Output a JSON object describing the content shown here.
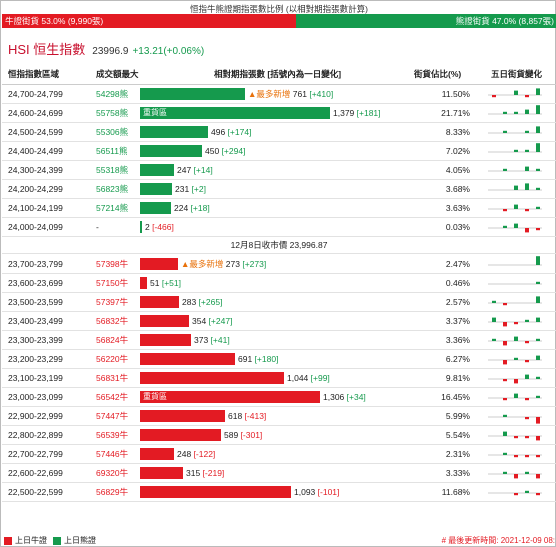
{
  "caption": "恒指牛熊證期指張數比例 (以相對期指張數計算)",
  "ratio": {
    "bull_label": "牛證街貨 53.0% (9,990張)",
    "bear_label": "熊證街貨 47.0% (8,857張)",
    "bull_pct": 53.0,
    "bull_color": "#e31b23",
    "bear_color": "#159a4d"
  },
  "index": {
    "name": "HSI 恒生指數",
    "price": "23996.9",
    "change": "+13.21(+0.06%)"
  },
  "headers": {
    "range": "恒指指數區域",
    "code": "成交額最大",
    "qty": "相對期指張數 [括號內為一日變化]",
    "ratio": "街貨佔比(%)",
    "spark": "五日街貨變化"
  },
  "divider": "12月8日收市價 23,996.87",
  "hot_tag": "重貨區",
  "newest_tag": "▲最多新增",
  "bear_rows": [
    {
      "range": "24,700-24,799",
      "code": "54298熊",
      "qty": "761",
      "qty_value": 761,
      "change": "[+410]",
      "ratio": "11.50%",
      "newest": true,
      "hot": false,
      "spark": [
        -1,
        0,
        2,
        -1,
        3
      ]
    },
    {
      "range": "24,600-24,699",
      "code": "55758熊",
      "qty": "1,379",
      "qty_value": 1379,
      "change": "[+181]",
      "ratio": "21.71%",
      "newest": false,
      "hot": true,
      "spark": [
        0,
        1,
        1,
        2,
        4
      ]
    },
    {
      "range": "24,500-24,599",
      "code": "55306熊",
      "qty": "496",
      "qty_value": 496,
      "change": "[+174]",
      "ratio": "8.33%",
      "newest": false,
      "hot": false,
      "spark": [
        0,
        1,
        0,
        1,
        3
      ]
    },
    {
      "range": "24,400-24,499",
      "code": "56511熊",
      "qty": "450",
      "qty_value": 450,
      "change": "[+294]",
      "ratio": "7.02%",
      "newest": false,
      "hot": false,
      "spark": [
        0,
        0,
        1,
        1,
        4
      ]
    },
    {
      "range": "24,300-24,399",
      "code": "55318熊",
      "qty": "247",
      "qty_value": 247,
      "change": "[+14]",
      "ratio": "4.05%",
      "newest": false,
      "hot": false,
      "spark": [
        0,
        1,
        0,
        2,
        1
      ]
    },
    {
      "range": "24,200-24,299",
      "code": "56823熊",
      "qty": "231",
      "qty_value": 231,
      "change": "[+2]",
      "ratio": "3.68%",
      "newest": false,
      "hot": false,
      "spark": [
        0,
        0,
        2,
        3,
        1
      ]
    },
    {
      "range": "24,100-24,199",
      "code": "57214熊",
      "qty": "224",
      "qty_value": 224,
      "change": "[+18]",
      "ratio": "3.63%",
      "newest": false,
      "hot": false,
      "spark": [
        0,
        -1,
        2,
        -1,
        1
      ]
    },
    {
      "range": "24,000-24,099",
      "code": "-",
      "qty": "2",
      "qty_value": 2,
      "change": "[-466]",
      "ratio": "0.03%",
      "newest": false,
      "hot": false,
      "spark": [
        0,
        1,
        2,
        -2,
        -1
      ]
    }
  ],
  "bull_rows": [
    {
      "range": "23,700-23,799",
      "code": "57398牛",
      "qty": "273",
      "qty_value": 273,
      "change": "[+273]",
      "ratio": "2.47%",
      "newest": true,
      "hot": false,
      "spark": [
        0,
        0,
        0,
        0,
        4
      ]
    },
    {
      "range": "23,600-23,699",
      "code": "57150牛",
      "qty": "51",
      "qty_value": 51,
      "change": "[+51]",
      "ratio": "0.46%",
      "newest": false,
      "hot": false,
      "spark": [
        0,
        0,
        0,
        0,
        1
      ]
    },
    {
      "range": "23,500-23,599",
      "code": "57397牛",
      "qty": "283",
      "qty_value": 283,
      "change": "[+265]",
      "ratio": "2.57%",
      "newest": false,
      "hot": false,
      "spark": [
        1,
        -1,
        0,
        0,
        3
      ]
    },
    {
      "range": "23,400-23,499",
      "code": "56832牛",
      "qty": "354",
      "qty_value": 354,
      "change": "[+247]",
      "ratio": "3.37%",
      "newest": false,
      "hot": false,
      "spark": [
        2,
        -2,
        -1,
        1,
        2
      ]
    },
    {
      "range": "23,300-23,399",
      "code": "56824牛",
      "qty": "373",
      "qty_value": 373,
      "change": "[+41]",
      "ratio": "3.36%",
      "newest": false,
      "hot": false,
      "spark": [
        1,
        -2,
        2,
        -1,
        1
      ]
    },
    {
      "range": "23,200-23,299",
      "code": "56220牛",
      "qty": "691",
      "qty_value": 691,
      "change": "[+180]",
      "ratio": "6.27%",
      "newest": false,
      "hot": false,
      "spark": [
        0,
        -2,
        1,
        -1,
        2
      ]
    },
    {
      "range": "23,100-23,199",
      "code": "56831牛",
      "qty": "1,044",
      "qty_value": 1044,
      "change": "[+99]",
      "ratio": "9.81%",
      "newest": false,
      "hot": false,
      "spark": [
        0,
        -1,
        -2,
        2,
        1
      ]
    },
    {
      "range": "23,000-23,099",
      "code": "56542牛",
      "qty": "1,306",
      "qty_value": 1306,
      "change": "[+34]",
      "ratio": "16.45%",
      "newest": false,
      "hot": true,
      "spark": [
        0,
        -1,
        2,
        -1,
        1
      ]
    },
    {
      "range": "22,900-22,999",
      "code": "57447牛",
      "qty": "618",
      "qty_value": 618,
      "change": "[-413]",
      "ratio": "5.99%",
      "newest": false,
      "hot": false,
      "spark": [
        0,
        1,
        0,
        -1,
        -3
      ]
    },
    {
      "range": "22,800-22,899",
      "code": "56539牛",
      "qty": "589",
      "qty_value": 589,
      "change": "[-301]",
      "ratio": "5.54%",
      "newest": false,
      "hot": false,
      "spark": [
        0,
        2,
        -1,
        -1,
        -2
      ]
    },
    {
      "range": "22,700-22,799",
      "code": "57446牛",
      "qty": "248",
      "qty_value": 248,
      "change": "[-122]",
      "ratio": "2.31%",
      "newest": false,
      "hot": false,
      "spark": [
        0,
        1,
        -1,
        -1,
        -1
      ]
    },
    {
      "range": "22,600-22,699",
      "code": "69320牛",
      "qty": "315",
      "qty_value": 315,
      "change": "[-219]",
      "ratio": "3.33%",
      "newest": false,
      "hot": false,
      "spark": [
        0,
        1,
        -2,
        1,
        -2
      ]
    },
    {
      "range": "22,500-22,599",
      "code": "56829牛",
      "qty": "1,093",
      "qty_value": 1093,
      "change": "[-101]",
      "ratio": "11.68%",
      "newest": false,
      "hot": false,
      "spark": [
        0,
        0,
        -1,
        1,
        -1
      ]
    }
  ],
  "legend": {
    "bull": "上日牛證",
    "bear": "上日熊證"
  },
  "updated": "# 最後更新時間: 2021-12-09 08:"
}
